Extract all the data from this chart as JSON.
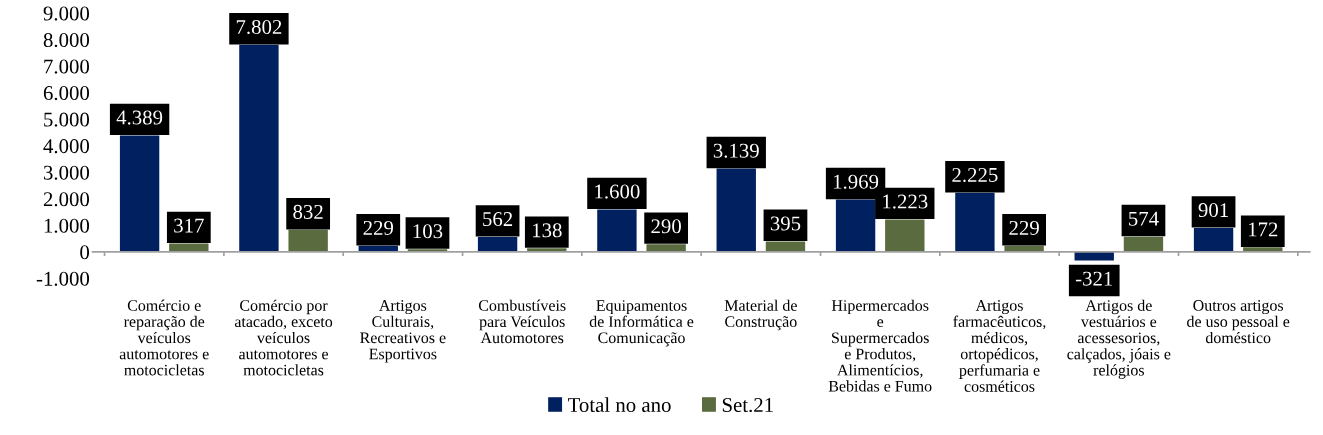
{
  "chart_data": {
    "type": "bar",
    "categories": [
      "Comércio e\nreparação de\nveículos\nautomotores e\nmotocicletas",
      "Comércio por\natacado, exceto\nveículos\nautomotores e\nmotocicletas",
      "Artigos\nCulturais,\nRecreativos e\nEsportivos",
      "Combustíveis\npara Veículos\nAutomotores",
      "Equipamentos\nde Informática e\nComunicação",
      "Material de\nConstrução",
      "Hipermercados\ne\nSupermercados\ne Produtos,\nAlimentícios,\nBebidas e Fumo",
      "Artigos\nfarmacêuticos,\nmédicos,\nortopédicos,\nperfumaria e\ncosméticos",
      "Artigos de\nvestuários e\nacessesorios,\ncalçados, jóais e\nrelógios",
      "Outros artigos\nde uso pessoal e\ndoméstico"
    ],
    "series": [
      {
        "name": "Total no ano",
        "color": "#002060",
        "values": [
          4389,
          7802,
          229,
          562,
          1600,
          3139,
          1969,
          2225,
          -321,
          901
        ],
        "value_labels": [
          "4.389",
          "7.802",
          "229",
          "562",
          "1.600",
          "3.139",
          "1.969",
          "2.225",
          "-321",
          "901"
        ]
      },
      {
        "name": "Set.21",
        "color": "#5a6b3f",
        "values": [
          317,
          832,
          103,
          138,
          290,
          395,
          1223,
          229,
          574,
          172
        ],
        "value_labels": [
          "317",
          "832",
          "103",
          "138",
          "290",
          "395",
          "1.223",
          "229",
          "574",
          "172"
        ]
      }
    ],
    "ylim": [
      -1000,
      9000
    ],
    "yticks": [
      {
        "value": -1000,
        "label": "-1.000"
      },
      {
        "value": 0,
        "label": "0"
      },
      {
        "value": 1000,
        "label": "1.000"
      },
      {
        "value": 2000,
        "label": "2.000"
      },
      {
        "value": 3000,
        "label": "3.000"
      },
      {
        "value": 4000,
        "label": "4.000"
      },
      {
        "value": 5000,
        "label": "5.000"
      },
      {
        "value": 6000,
        "label": "6.000"
      },
      {
        "value": 7000,
        "label": "7.000"
      },
      {
        "value": 8000,
        "label": "8.000"
      },
      {
        "value": 9000,
        "label": "9.000"
      }
    ],
    "legend": "bottom"
  }
}
